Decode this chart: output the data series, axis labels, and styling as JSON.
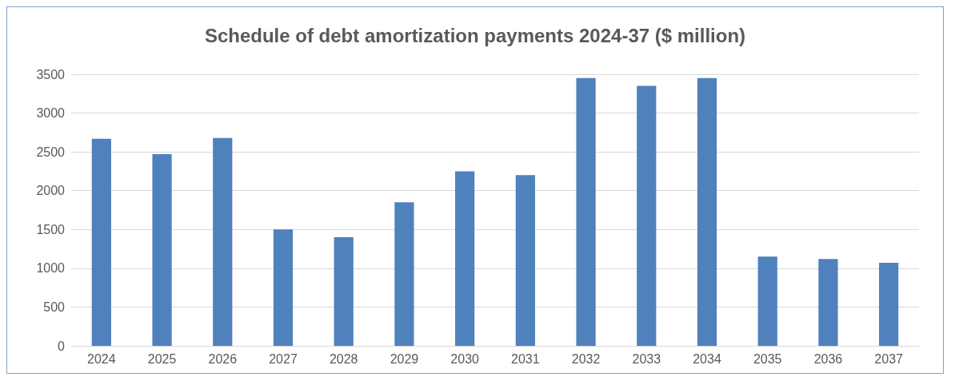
{
  "chart_data": {
    "type": "bar",
    "title": "Schedule of debt amortization payments 2024-37 ($ million)",
    "categories": [
      "2024",
      "2025",
      "2026",
      "2027",
      "2028",
      "2029",
      "2030",
      "2031",
      "2032",
      "2033",
      "2034",
      "2035",
      "2036",
      "2037"
    ],
    "values": [
      2670,
      2470,
      2680,
      1500,
      1400,
      1850,
      2250,
      2200,
      3450,
      3350,
      3450,
      1150,
      1120,
      1070
    ],
    "color": "#4f81bd",
    "ylim": [
      0,
      3500
    ],
    "yticks": [
      0,
      500,
      1000,
      1500,
      2000,
      2500,
      3000,
      3500
    ],
    "grid": "y"
  }
}
